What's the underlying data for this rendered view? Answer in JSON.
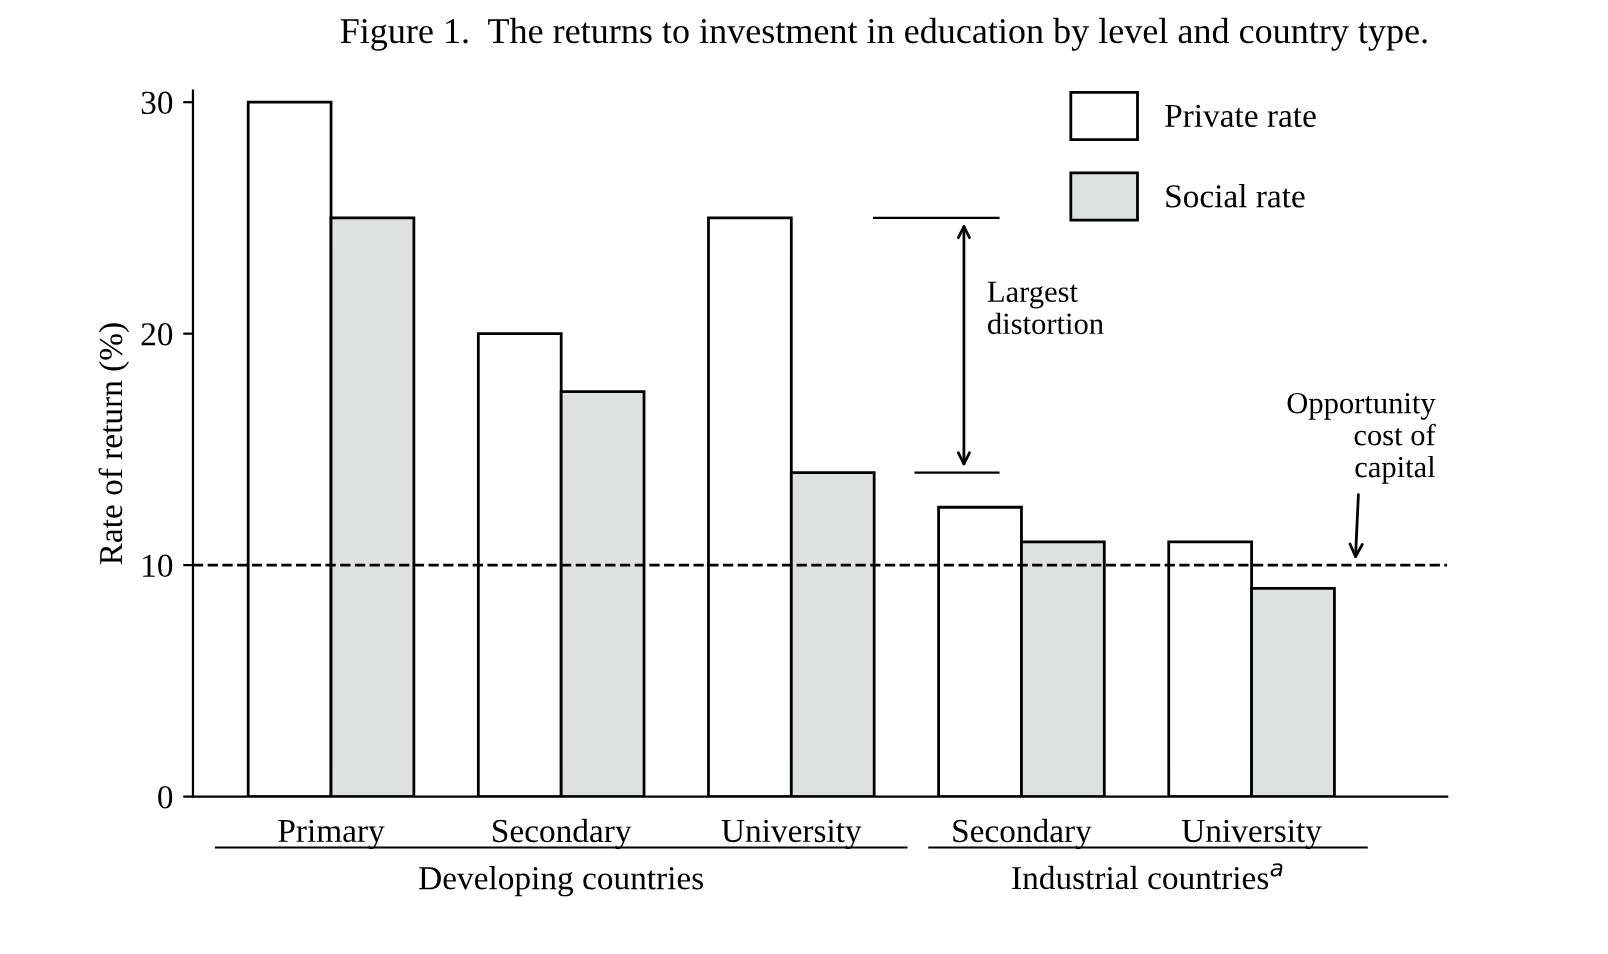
{
  "chart_data": {
    "type": "bar",
    "title": "Figure 1.  The returns to investment in education by level and country type.",
    "ylabel": "Rate of return (%)",
    "categories": [
      "Primary",
      "Secondary",
      "University",
      "Secondary",
      "University"
    ],
    "series": [
      {
        "name": "Private rate",
        "color": "#ffffff",
        "values": [
          30,
          20,
          25,
          12.5,
          11
        ]
      },
      {
        "name": "Social rate",
        "color": "#dde2de",
        "values": [
          25,
          17.5,
          14,
          11,
          9
        ]
      }
    ],
    "ylim": [
      0,
      30.5
    ],
    "yticks": [
      0,
      10,
      20,
      30
    ],
    "ref_lines": [
      {
        "axis": "y",
        "value": 10,
        "label": "Opportunity\ncost of\ncapital",
        "line_style": "dashed"
      }
    ],
    "annotations": [
      "Largest\ndistortion",
      "Developing countries",
      "Industrial countries$^{a}$"
    ],
    "legend": "top right",
    "grid": false
  }
}
